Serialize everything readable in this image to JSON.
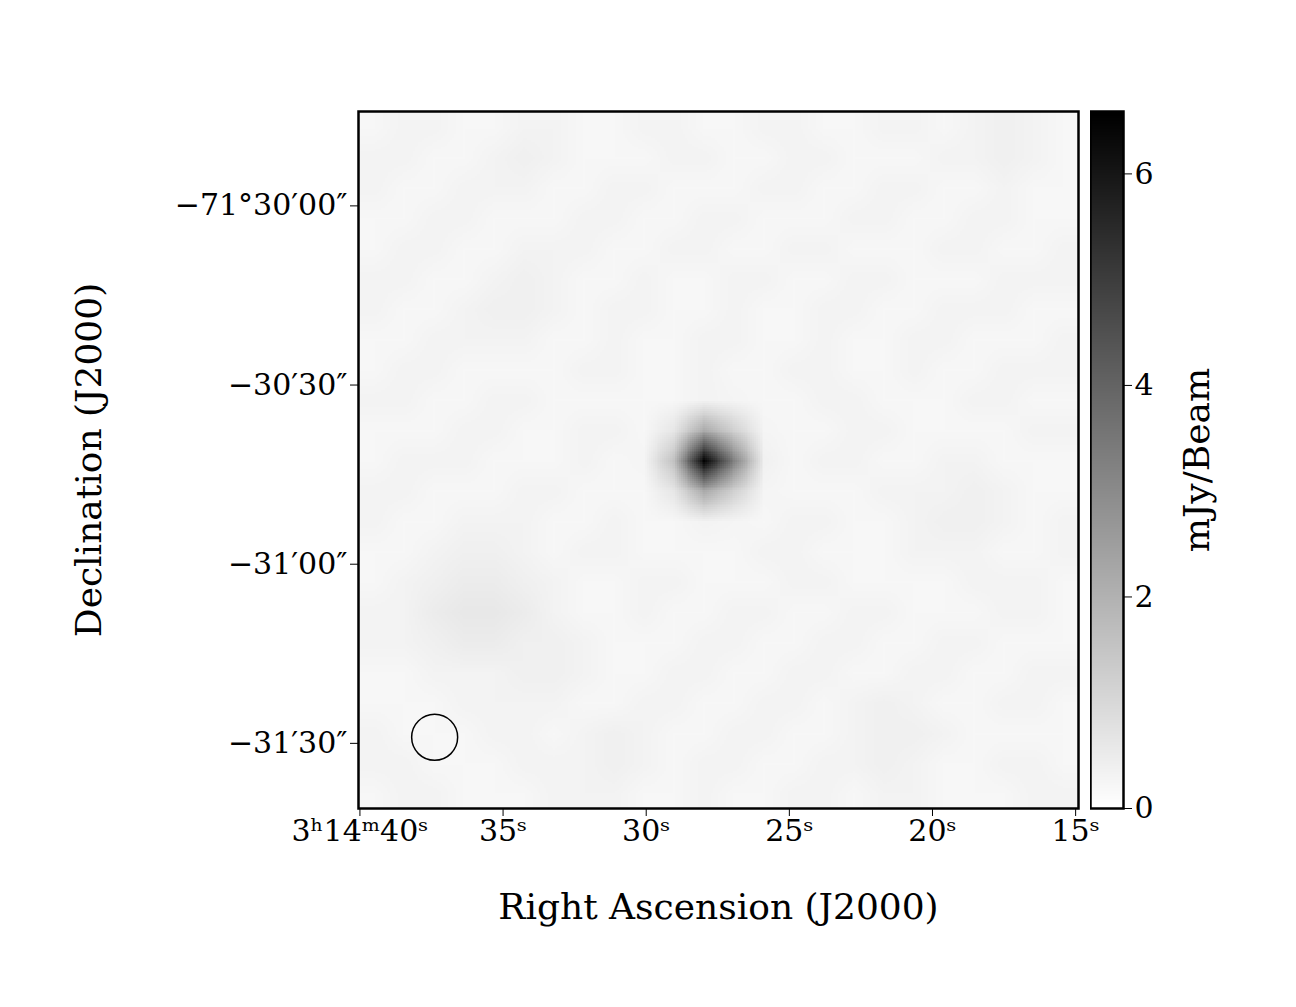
{
  "chart_data": {
    "type": "heatmap",
    "x_label": "Right Ascension (J2000)",
    "y_label": "Declination (J2000)",
    "xlim": [
      40.05,
      14.9
    ],
    "xticks": [
      {
        "value": 40,
        "label": "3ʰ14ᵐ40ˢ"
      },
      {
        "value": 35,
        "label": "35ˢ"
      },
      {
        "value": 30,
        "label": "30ˢ"
      },
      {
        "value": 25,
        "label": "25ˢ"
      },
      {
        "value": 20,
        "label": "20ˢ"
      },
      {
        "value": 15,
        "label": "15ˢ"
      }
    ],
    "ylim": [
      -71.52803,
      -71.49561
    ],
    "yticks": [
      {
        "value": -71.5,
        "label": "−71°30′00″"
      },
      {
        "value": -71.508333,
        "label": "−30′30″"
      },
      {
        "value": -71.516667,
        "label": "−31′00″"
      },
      {
        "value": -71.525,
        "label": "−31′30″"
      }
    ],
    "cells": [
      [
        0.2,
        0.3,
        0.3,
        0.2,
        0.2,
        0.3,
        0.3,
        0.2,
        0.2,
        0.3,
        0.3,
        0.2,
        0.2,
        0.3,
        0.3,
        0.2,
        0.2,
        0.3,
        0.3,
        0.2,
        0.3,
        0.4,
        0.3,
        0.2
      ],
      [
        0.3,
        0.3,
        0.2,
        0.2,
        0.3,
        0.4,
        0.3,
        0.2,
        0.2,
        0.2,
        0.3,
        0.3,
        0.2,
        0.2,
        0.3,
        0.3,
        0.2,
        0.2,
        0.2,
        0.3,
        0.3,
        0.4,
        0.3,
        0.2
      ],
      [
        0.3,
        0.2,
        0.2,
        0.3,
        0.3,
        0.3,
        0.2,
        0.2,
        0.3,
        0.3,
        0.2,
        0.2,
        0.2,
        0.3,
        0.3,
        0.2,
        0.2,
        0.3,
        0.3,
        0.2,
        0.2,
        0.3,
        0.2,
        0.2
      ],
      [
        0.2,
        0.2,
        0.3,
        0.3,
        0.2,
        0.2,
        0.2,
        0.3,
        0.3,
        0.2,
        0.2,
        0.3,
        0.3,
        0.2,
        0.2,
        0.2,
        0.3,
        0.3,
        0.2,
        0.2,
        0.3,
        0.3,
        0.2,
        0.2
      ],
      [
        0.2,
        0.3,
        0.3,
        0.2,
        0.2,
        0.3,
        0.3,
        0.3,
        0.2,
        0.2,
        0.3,
        0.3,
        0.2,
        0.2,
        0.3,
        0.3,
        0.2,
        0.2,
        0.2,
        0.3,
        0.3,
        0.2,
        0.2,
        0.3
      ],
      [
        0.3,
        0.3,
        0.2,
        0.2,
        0.3,
        0.4,
        0.3,
        0.2,
        0.2,
        0.3,
        0.2,
        0.2,
        0.3,
        0.3,
        0.2,
        0.2,
        0.3,
        0.3,
        0.2,
        0.2,
        0.2,
        0.3,
        0.3,
        0.3
      ],
      [
        0.3,
        0.2,
        0.2,
        0.3,
        0.4,
        0.4,
        0.3,
        0.2,
        0.3,
        0.3,
        0.2,
        0.2,
        0.3,
        0.2,
        0.2,
        0.3,
        0.3,
        0.2,
        0.2,
        0.3,
        0.3,
        0.3,
        0.2,
        0.2
      ],
      [
        0.2,
        0.2,
        0.3,
        0.3,
        0.3,
        0.3,
        0.2,
        0.2,
        0.3,
        0.2,
        0.2,
        0.3,
        0.3,
        0.2,
        0.2,
        0.3,
        0.2,
        0.2,
        0.3,
        0.3,
        0.2,
        0.2,
        0.2,
        0.3
      ],
      [
        0.2,
        0.3,
        0.3,
        0.2,
        0.2,
        0.2,
        0.2,
        0.3,
        0.3,
        0.2,
        0.2,
        0.3,
        0.2,
        0.2,
        0.3,
        0.3,
        0.2,
        0.2,
        0.3,
        0.2,
        0.2,
        0.3,
        0.3,
        0.3
      ],
      [
        0.3,
        0.3,
        0.2,
        0.2,
        0.3,
        0.3,
        0.2,
        0.2,
        0.2,
        0.2,
        0.2,
        0.3,
        0.25,
        0.2,
        0.2,
        0.3,
        0.3,
        0.2,
        0.2,
        0.2,
        0.3,
        0.3,
        0.2,
        0.2
      ],
      [
        0.2,
        0.2,
        0.2,
        0.3,
        0.3,
        0.2,
        0.2,
        0.3,
        0.3,
        0.2,
        0.65,
        2.2,
        1.2,
        0.25,
        0.2,
        0.2,
        0.3,
        0.3,
        0.2,
        0.2,
        0.2,
        0.2,
        0.3,
        0.3
      ],
      [
        0.2,
        0.3,
        0.3,
        0.3,
        0.2,
        0.2,
        0.2,
        0.3,
        0.2,
        0.25,
        1.6,
        6.5,
        3.2,
        0.35,
        0.2,
        0.3,
        0.3,
        0.2,
        0.2,
        0.3,
        0.3,
        0.2,
        0.2,
        0.2
      ],
      [
        0.3,
        0.3,
        0.2,
        0.2,
        0.2,
        0.3,
        0.3,
        0.2,
        0.2,
        0.2,
        0.65,
        2.2,
        1.2,
        0.25,
        0.2,
        0.2,
        0.2,
        0.3,
        0.3,
        0.3,
        0.4,
        0.3,
        0.2,
        0.2
      ],
      [
        0.3,
        0.2,
        0.2,
        0.3,
        0.3,
        0.3,
        0.2,
        0.2,
        0.3,
        0.2,
        0.2,
        0.3,
        0.25,
        0.2,
        0.3,
        0.3,
        0.2,
        0.2,
        0.3,
        0.4,
        0.4,
        0.3,
        0.2,
        0.3
      ],
      [
        0.2,
        0.2,
        0.3,
        0.4,
        0.4,
        0.3,
        0.2,
        0.3,
        0.3,
        0.2,
        0.2,
        0.2,
        0.2,
        0.3,
        0.3,
        0.2,
        0.2,
        0.2,
        0.3,
        0.3,
        0.3,
        0.2,
        0.2,
        0.3
      ],
      [
        0.2,
        0.3,
        0.4,
        0.5,
        0.5,
        0.4,
        0.3,
        0.2,
        0.2,
        0.3,
        0.3,
        0.2,
        0.2,
        0.2,
        0.3,
        0.3,
        0.2,
        0.2,
        0.2,
        0.2,
        0.3,
        0.3,
        0.3,
        0.2
      ],
      [
        0.3,
        0.3,
        0.5,
        0.6,
        0.6,
        0.5,
        0.3,
        0.2,
        0.2,
        0.3,
        0.2,
        0.2,
        0.3,
        0.3,
        0.2,
        0.2,
        0.3,
        0.3,
        0.2,
        0.2,
        0.2,
        0.3,
        0.3,
        0.2
      ],
      [
        0.3,
        0.3,
        0.4,
        0.5,
        0.5,
        0.4,
        0.4,
        0.3,
        0.2,
        0.2,
        0.2,
        0.3,
        0.3,
        0.2,
        0.2,
        0.3,
        0.3,
        0.2,
        0.2,
        0.3,
        0.3,
        0.2,
        0.2,
        0.2
      ],
      [
        0.2,
        0.2,
        0.3,
        0.3,
        0.3,
        0.4,
        0.4,
        0.3,
        0.2,
        0.2,
        0.3,
        0.3,
        0.2,
        0.2,
        0.3,
        0.3,
        0.2,
        0.2,
        0.3,
        0.3,
        0.2,
        0.2,
        0.3,
        0.3
      ],
      [
        0.2,
        0.2,
        0.2,
        0.3,
        0.3,
        0.3,
        0.3,
        0.2,
        0.2,
        0.3,
        0.3,
        0.2,
        0.2,
        0.3,
        0.3,
        0.2,
        0.3,
        0.4,
        0.3,
        0.2,
        0.2,
        0.3,
        0.3,
        0.2
      ],
      [
        0.3,
        0.2,
        0.2,
        0.2,
        0.3,
        0.3,
        0.2,
        0.3,
        0.4,
        0.3,
        0.2,
        0.2,
        0.3,
        0.3,
        0.2,
        0.2,
        0.3,
        0.4,
        0.4,
        0.3,
        0.2,
        0.2,
        0.2,
        0.2
      ],
      [
        0.3,
        0.3,
        0.2,
        0.2,
        0.2,
        0.3,
        0.3,
        0.3,
        0.4,
        0.3,
        0.2,
        0.3,
        0.3,
        0.2,
        0.2,
        0.3,
        0.3,
        0.4,
        0.3,
        0.2,
        0.2,
        0.3,
        0.3,
        0.2
      ],
      [
        0.2,
        0.3,
        0.3,
        0.2,
        0.2,
        0.2,
        0.3,
        0.3,
        0.3,
        0.2,
        0.2,
        0.3,
        0.2,
        0.2,
        0.3,
        0.3,
        0.2,
        0.3,
        0.3,
        0.2,
        0.2,
        0.2,
        0.3,
        0.3
      ]
    ],
    "colorbar": {
      "label": "mJy/Beam",
      "range": [
        0,
        6.59
      ],
      "ticks": [
        0,
        2,
        4,
        6
      ]
    },
    "beam": {
      "x": 37.39,
      "y": -71.52472,
      "diameter_arcsec": 7.7
    }
  }
}
